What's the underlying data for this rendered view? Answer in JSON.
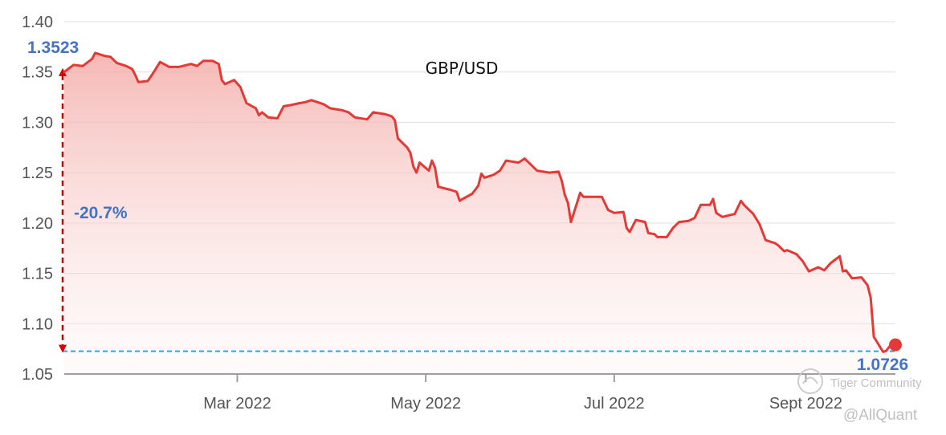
{
  "chart_data": {
    "type": "area",
    "title": "GBP/USD",
    "xlabel": "",
    "ylabel": "",
    "ylim": [
      1.05,
      1.4
    ],
    "y_ticks": [
      "1.05",
      "1.10",
      "1.15",
      "1.20",
      "1.25",
      "1.30",
      "1.35",
      "1.40"
    ],
    "x_ticks": [
      {
        "label": "Mar 2022",
        "date": "2022-03-01"
      },
      {
        "label": "May 2022",
        "date": "2022-05-01"
      },
      {
        "label": "Jul 2022",
        "date": "2022-07-01"
      },
      {
        "label": "Sept 2022",
        "date": "2022-09-01"
      }
    ],
    "x_start": "2022-01-04",
    "x_end": "2022-09-30",
    "grid": "horizontal",
    "series": [
      {
        "color": "#e53935",
        "points": [
          [
            "2022-01-04",
            1.35
          ],
          [
            "2022-01-07",
            1.357
          ],
          [
            "2022-01-10",
            1.356
          ],
          [
            "2022-01-13",
            1.363
          ],
          [
            "2022-01-14",
            1.369
          ],
          [
            "2022-01-17",
            1.366
          ],
          [
            "2022-01-19",
            1.365
          ],
          [
            "2022-01-21",
            1.359
          ],
          [
            "2022-01-24",
            1.356
          ],
          [
            "2022-01-26",
            1.353
          ],
          [
            "2022-01-27",
            1.347
          ],
          [
            "2022-01-28",
            1.34
          ],
          [
            "2022-01-31",
            1.341
          ],
          [
            "2022-02-02",
            1.35
          ],
          [
            "2022-02-04",
            1.36
          ],
          [
            "2022-02-07",
            1.355
          ],
          [
            "2022-02-10",
            1.355
          ],
          [
            "2022-02-14",
            1.358
          ],
          [
            "2022-02-16",
            1.356
          ],
          [
            "2022-02-18",
            1.361
          ],
          [
            "2022-02-21",
            1.361
          ],
          [
            "2022-02-23",
            1.358
          ],
          [
            "2022-02-24",
            1.342
          ],
          [
            "2022-02-25",
            1.338
          ],
          [
            "2022-02-28",
            1.342
          ],
          [
            "2022-03-02",
            1.335
          ],
          [
            "2022-03-04",
            1.319
          ],
          [
            "2022-03-07",
            1.314
          ],
          [
            "2022-03-08",
            1.307
          ],
          [
            "2022-03-09",
            1.31
          ],
          [
            "2022-03-11",
            1.305
          ],
          [
            "2022-03-14",
            1.304
          ],
          [
            "2022-03-16",
            1.316
          ],
          [
            "2022-03-18",
            1.317
          ],
          [
            "2022-03-21",
            1.319
          ],
          [
            "2022-03-23",
            1.32
          ],
          [
            "2022-03-25",
            1.322
          ],
          [
            "2022-03-29",
            1.318
          ],
          [
            "2022-03-31",
            1.314
          ],
          [
            "2022-04-04",
            1.312
          ],
          [
            "2022-04-06",
            1.31
          ],
          [
            "2022-04-08",
            1.305
          ],
          [
            "2022-04-12",
            1.303
          ],
          [
            "2022-04-14",
            1.31
          ],
          [
            "2022-04-18",
            1.308
          ],
          [
            "2022-04-20",
            1.306
          ],
          [
            "2022-04-21",
            1.302
          ],
          [
            "2022-04-22",
            1.284
          ],
          [
            "2022-04-25",
            1.275
          ],
          [
            "2022-04-26",
            1.27
          ],
          [
            "2022-04-27",
            1.256
          ],
          [
            "2022-04-28",
            1.25
          ],
          [
            "2022-04-29",
            1.26
          ],
          [
            "2022-05-02",
            1.252
          ],
          [
            "2022-05-03",
            1.262
          ],
          [
            "2022-05-04",
            1.255
          ],
          [
            "2022-05-05",
            1.236
          ],
          [
            "2022-05-09",
            1.233
          ],
          [
            "2022-05-11",
            1.231
          ],
          [
            "2022-05-12",
            1.222
          ],
          [
            "2022-05-13",
            1.224
          ],
          [
            "2022-05-16",
            1.229
          ],
          [
            "2022-05-17",
            1.233
          ],
          [
            "2022-05-18",
            1.237
          ],
          [
            "2022-05-19",
            1.249
          ],
          [
            "2022-05-20",
            1.245
          ],
          [
            "2022-05-23",
            1.248
          ],
          [
            "2022-05-25",
            1.252
          ],
          [
            "2022-05-27",
            1.262
          ],
          [
            "2022-05-31",
            1.26
          ],
          [
            "2022-06-02",
            1.264
          ],
          [
            "2022-06-06",
            1.252
          ],
          [
            "2022-06-08",
            1.251
          ],
          [
            "2022-06-10",
            1.25
          ],
          [
            "2022-06-13",
            1.251
          ],
          [
            "2022-06-14",
            1.242
          ],
          [
            "2022-06-15",
            1.228
          ],
          [
            "2022-06-16",
            1.22
          ],
          [
            "2022-06-17",
            1.201
          ],
          [
            "2022-06-20",
            1.23
          ],
          [
            "2022-06-21",
            1.226
          ],
          [
            "2022-06-23",
            1.226
          ],
          [
            "2022-06-27",
            1.226
          ],
          [
            "2022-06-29",
            1.213
          ],
          [
            "2022-07-01",
            1.21
          ],
          [
            "2022-07-04",
            1.211
          ],
          [
            "2022-07-05",
            1.195
          ],
          [
            "2022-07-06",
            1.191
          ],
          [
            "2022-07-08",
            1.203
          ],
          [
            "2022-07-11",
            1.201
          ],
          [
            "2022-07-12",
            1.19
          ],
          [
            "2022-07-14",
            1.189
          ],
          [
            "2022-07-15",
            1.186
          ],
          [
            "2022-07-18",
            1.186
          ],
          [
            "2022-07-20",
            1.195
          ],
          [
            "2022-07-22",
            1.201
          ],
          [
            "2022-07-25",
            1.202
          ],
          [
            "2022-07-27",
            1.205
          ],
          [
            "2022-07-29",
            1.218
          ],
          [
            "2022-08-01",
            1.218
          ],
          [
            "2022-08-02",
            1.224
          ],
          [
            "2022-08-03",
            1.21
          ],
          [
            "2022-08-05",
            1.206
          ],
          [
            "2022-08-09",
            1.209
          ],
          [
            "2022-08-11",
            1.222
          ],
          [
            "2022-08-12",
            1.218
          ],
          [
            "2022-08-15",
            1.209
          ],
          [
            "2022-08-17",
            1.199
          ],
          [
            "2022-08-19",
            1.183
          ],
          [
            "2022-08-22",
            1.18
          ],
          [
            "2022-08-23",
            1.178
          ],
          [
            "2022-08-25",
            1.172
          ],
          [
            "2022-08-26",
            1.173
          ],
          [
            "2022-08-29",
            1.169
          ],
          [
            "2022-08-31",
            1.162
          ],
          [
            "2022-09-02",
            1.152
          ],
          [
            "2022-09-05",
            1.156
          ],
          [
            "2022-09-07",
            1.153
          ],
          [
            "2022-09-09",
            1.16
          ],
          [
            "2022-09-12",
            1.167
          ],
          [
            "2022-09-13",
            1.152
          ],
          [
            "2022-09-14",
            1.153
          ],
          [
            "2022-09-16",
            1.145
          ],
          [
            "2022-09-19",
            1.146
          ],
          [
            "2022-09-21",
            1.138
          ],
          [
            "2022-09-22",
            1.126
          ],
          [
            "2022-09-23",
            1.087
          ],
          [
            "2022-09-26",
            1.072
          ],
          [
            "2022-09-27",
            1.073
          ],
          [
            "2022-09-28",
            1.077
          ],
          [
            "2022-09-30",
            1.079
          ]
        ]
      }
    ],
    "annotations": {
      "start_value": "1.3523",
      "end_value": "1.0726",
      "change": "-20.7%"
    }
  },
  "colors": {
    "line": "#e53935",
    "fill_top": "#f3aca8",
    "arrow": "#d50000",
    "dashed_line": "#29a8e0",
    "annotation_text": "#4472c4",
    "grid": "#e0e0e0",
    "axis": "#9e9e9e"
  },
  "watermark": {
    "brand": "Tiger Community",
    "handle": "@AllQuant"
  }
}
